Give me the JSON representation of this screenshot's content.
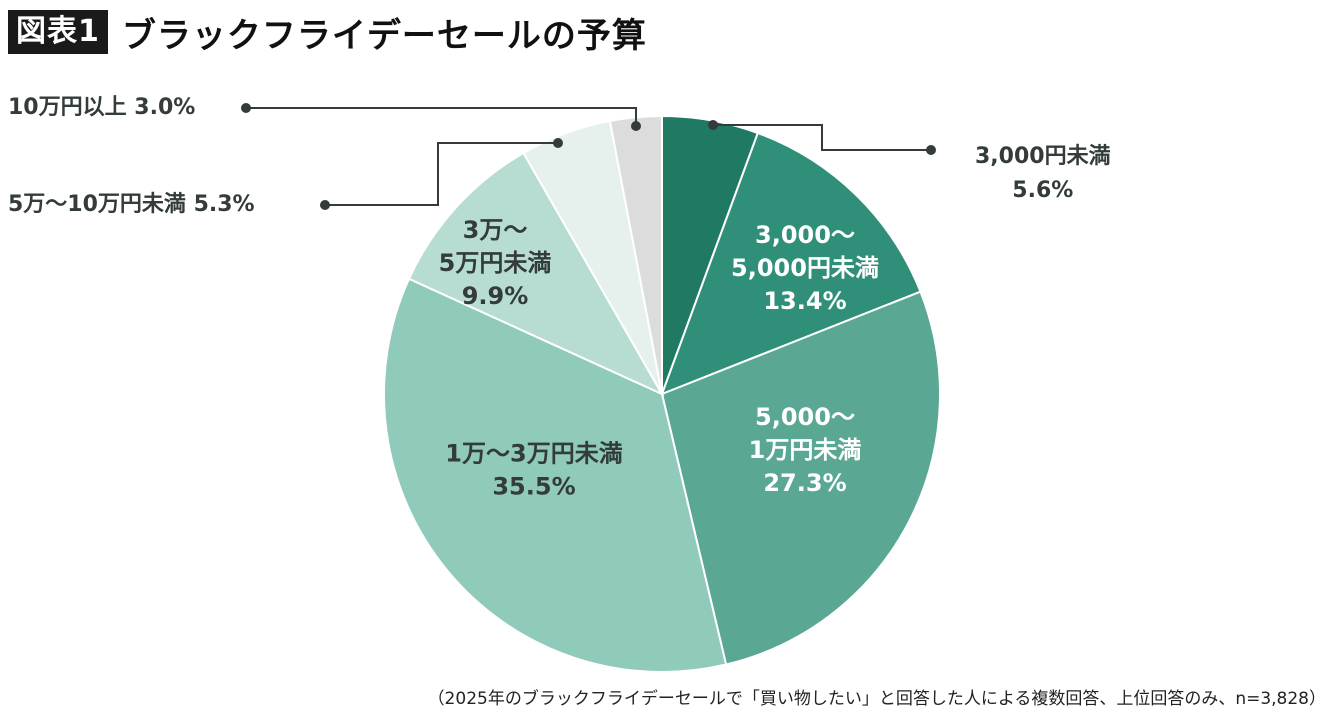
{
  "header": {
    "badge": "図表1",
    "title": "ブラックフライデーセールの予算"
  },
  "footnote": "（2025年のブラックフライデーセールで「買い物したい」と回答した人による複数回答、上位回答のみ、n=3,828）",
  "chart_data": {
    "type": "pie",
    "title": "ブラックフライデーセールの予算",
    "unit": "%",
    "slices": [
      {
        "label_lines": [
          "3,000円未満"
        ],
        "value": 5.6,
        "value_text": "5.6%",
        "color": "#207a63",
        "label_color": "#333b3b",
        "label_placement": "outside"
      },
      {
        "label_lines": [
          "3,000～",
          "5,000円未満"
        ],
        "value": 13.4,
        "value_text": "13.4%",
        "color": "#2f8f79",
        "label_color": "#ffffff",
        "label_placement": "inside"
      },
      {
        "label_lines": [
          "5,000～",
          "1万円未満"
        ],
        "value": 27.3,
        "value_text": "27.3%",
        "color": "#5aa894",
        "label_color": "#ffffff",
        "label_placement": "inside"
      },
      {
        "label_lines": [
          "1万～3万円未満"
        ],
        "value": 35.5,
        "value_text": "35.5%",
        "color": "#8fcabb",
        "label_color": "#333b3b",
        "label_placement": "inside"
      },
      {
        "label_lines": [
          "3万～",
          "5万円未満"
        ],
        "value": 9.9,
        "value_text": "9.9%",
        "color": "#b7ddd3",
        "label_color": "#333b3b",
        "label_placement": "inside"
      },
      {
        "label_lines": [
          "5万～10万円未満"
        ],
        "value": 5.3,
        "value_text": "5.3%",
        "color": "#e6f1ee",
        "label_color": "#333b3b",
        "label_placement": "outside"
      },
      {
        "label_lines": [
          "10万円以上"
        ],
        "value": 3.0,
        "value_text": "3.0%",
        "color": "#dcdcdc",
        "label_color": "#333b3b",
        "label_placement": "outside"
      }
    ]
  }
}
